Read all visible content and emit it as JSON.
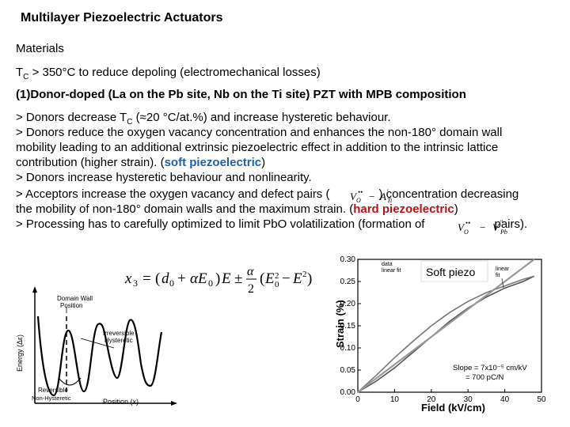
{
  "slide": {
    "title": "Multilayer Piezoelectric Actuators",
    "subtitle": "Materials",
    "tc_line": {
      "prefix": "T",
      "sub": "C",
      "rest": " > 350°C to reduce depoling (electromechanical losses)"
    },
    "donor_heading": "(1)Donor-doped (La on the Pb site, Nb on the Ti site) PZT with MPB composition",
    "lines": {
      "l1_a": " > Donors decrease T",
      "l1_sub": "C",
      "l1_b": " (≈20 °C/at.%) and increase hysteretic behaviour.",
      "l2": " > Donors reduce the oxygen vacancy concentration and enhances the non-180° domain wall",
      "l3": "mobility leading to an additional extrinsic piezoelectric effect in addition to the intrinsic lattice",
      "l4_a": "contribution (higher strain). (",
      "l4_b": "soft piezoelectric",
      "l4_c": ")",
      "l5": "> Donors increase hysteretic behaviour and nonlinearity.",
      "l6_a": "> Acceptors increase the oxygen vacancy and defect pairs (",
      "l6_b": ") concentration decreasing",
      "l7_a": "the mobility of non-180° domain walls and the maximum strain. (",
      "l7_b": "hard piezoelectric",
      "l7_c": ")",
      "l8_a": "> Processing has to carefully optimized to limit PbO volatilization (formation of",
      "l8_b": "pairs)."
    },
    "defect_pair_1": "V_O•• − A'_Ti",
    "defect_pair_2": "V_O•• − V''_Pb",
    "equation": "x3 = (d0 + αE0)E ± α/2 (E0² − E²)",
    "energy_plot": {
      "ylabel": "Energy (Δε)",
      "xlabel": "Position (x)",
      "labels": {
        "wall": "Domain Wall",
        "wall2": "Position",
        "irr": "Irreversible",
        "irr2": "Hysteretic",
        "rev": "Reversible",
        "rev2": "Non-Hysteretic"
      }
    },
    "soft_piezo_label": "Soft piezo"
  },
  "chart_data": {
    "type": "line",
    "xlabel": "Field (kV/cm)",
    "ylabel": "Strain (%)",
    "xlim": [
      0,
      50
    ],
    "ylim": [
      0,
      0.3
    ],
    "xticks": [
      "0",
      "10",
      "20",
      "30",
      "40",
      "50"
    ],
    "yticks": [
      "0.00",
      "0.05",
      "0.10",
      "0.15",
      "0.20",
      "0.25",
      "0.30"
    ],
    "annotations": [
      "data",
      "linear fit",
      "linear",
      "fit",
      "Slope = 7x10⁻⁵ cm/kV",
      "= 700 pC/N"
    ],
    "series": [
      {
        "name": "data",
        "x": [
          0,
          5,
          10,
          15,
          20,
          25,
          30,
          35,
          40,
          45,
          48
        ],
        "y": [
          0.0,
          0.025,
          0.055,
          0.09,
          0.125,
          0.16,
          0.19,
          0.215,
          0.235,
          0.25,
          0.262
        ]
      },
      {
        "name": "data",
        "x": [
          48,
          45,
          40,
          35,
          30,
          25,
          20,
          15,
          10,
          5,
          0
        ],
        "y": [
          0.262,
          0.255,
          0.24,
          0.225,
          0.205,
          0.18,
          0.15,
          0.115,
          0.078,
          0.038,
          0.0
        ]
      },
      {
        "name": "linear fit",
        "x": [
          0,
          48
        ],
        "y": [
          0.0,
          0.3
        ]
      }
    ]
  }
}
